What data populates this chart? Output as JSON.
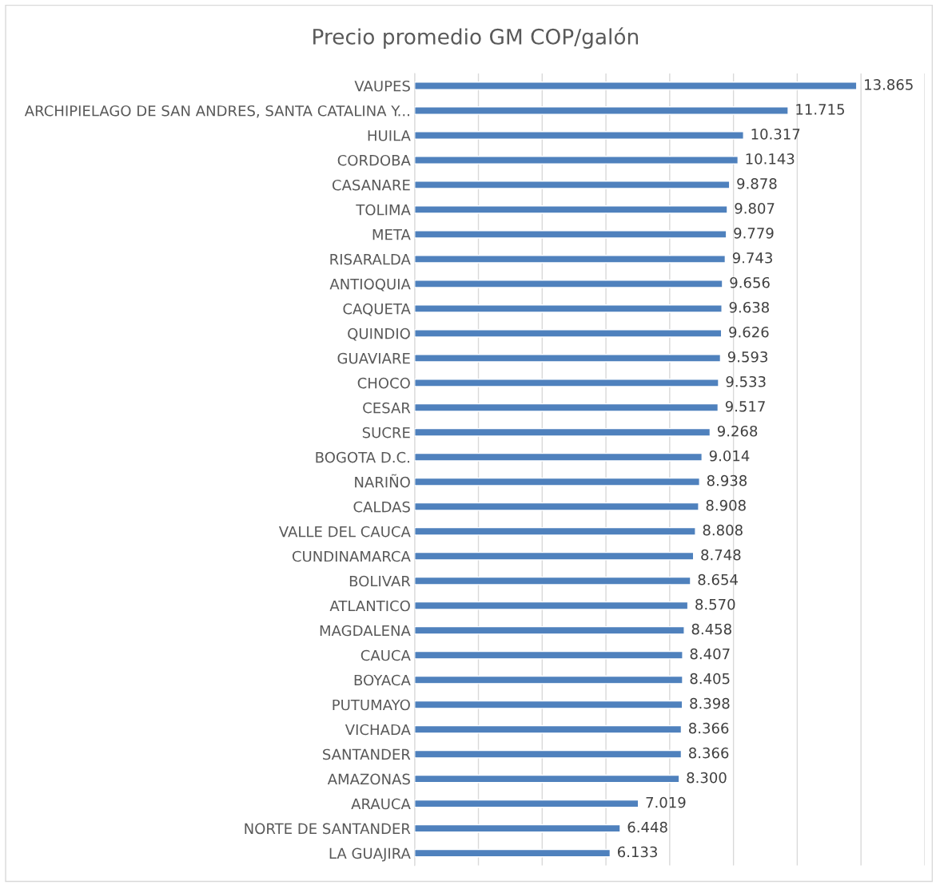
{
  "chart_data": {
    "type": "bar",
    "orientation": "horizontal",
    "title": "Precio promedio GM COP/galón",
    "categories": [
      "VAUPES",
      "ARCHIPIELAGO DE SAN ANDRES, SANTA CATALINA Y...",
      "HUILA",
      "CORDOBA",
      "CASANARE",
      "TOLIMA",
      "META",
      "RISARALDA",
      "ANTIOQUIA",
      "CAQUETA",
      "QUINDIO",
      "GUAVIARE",
      "CHOCO",
      "CESAR",
      "SUCRE",
      "BOGOTA D.C.",
      "NARIÑO",
      "CALDAS",
      "VALLE DEL CAUCA",
      "CUNDINAMARCA",
      "BOLIVAR",
      "ATLANTICO",
      "MAGDALENA",
      "CAUCA",
      "BOYACA",
      "PUTUMAYO",
      "VICHADA",
      "SANTANDER",
      "AMAZONAS",
      "ARAUCA",
      "NORTE DE SANTANDER",
      "LA GUAJIRA"
    ],
    "values": [
      13865,
      11715,
      10317,
      10143,
      9878,
      9807,
      9779,
      9743,
      9656,
      9638,
      9626,
      9593,
      9533,
      9517,
      9268,
      9014,
      8938,
      8908,
      8808,
      8748,
      8654,
      8570,
      8458,
      8407,
      8405,
      8398,
      8366,
      8366,
      8300,
      7019,
      6448,
      6133
    ],
    "value_labels": [
      "13.865",
      "11.715",
      "10.317",
      "10.143",
      "9.878",
      "9.807",
      "9.779",
      "9.743",
      "9.656",
      "9.638",
      "9.626",
      "9.593",
      "9.533",
      "9.517",
      "9.268",
      "9.014",
      "8.938",
      "8.908",
      "8.808",
      "8.748",
      "8.654",
      "8.570",
      "8.458",
      "8.407",
      "8.405",
      "8.398",
      "8.366",
      "8.366",
      "8.300",
      "7.019",
      "6.448",
      "6.133"
    ],
    "color": "#4f81bd",
    "xlim": [
      0,
      16000
    ],
    "xticks": [
      {
        "value": 0,
        "label": null
      },
      {
        "value": 2000,
        "label": null
      },
      {
        "value": 4000,
        "label": null
      },
      {
        "value": 6000,
        "label": null
      },
      {
        "value": 8000,
        "label": null
      },
      {
        "value": 10000,
        "label": null
      },
      {
        "value": 12000,
        "label": null
      },
      {
        "value": 14000,
        "label": null
      },
      {
        "value": 16000,
        "label": null
      }
    ],
    "grid": "x",
    "tick_labels": "y"
  }
}
